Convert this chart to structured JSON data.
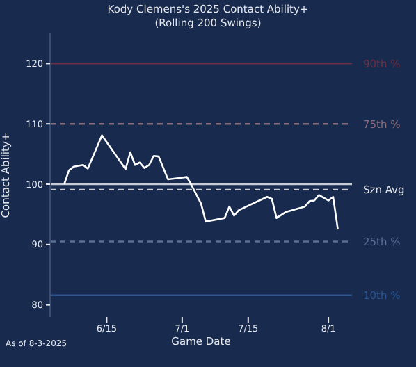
{
  "chart_data": {
    "type": "line",
    "title": "Kody Clemens's 2025 Contact Ability+\n(Rolling 200 Swings)",
    "xlabel": "Game Date",
    "ylabel": "Contact Ability+",
    "annotations": [
      "As of 8-3-2025"
    ],
    "x": [
      "--06-06",
      "--06-07",
      "--06-08",
      "--06-10",
      "--06-11",
      "--06-14",
      "--06-19",
      "--06-20",
      "--06-21",
      "--06-22",
      "--06-23",
      "--06-24",
      "--06-25",
      "--06-26",
      "--06-28",
      "--07-02",
      "--07-03",
      "--07-05",
      "--07-06",
      "--07-10",
      "--07-11",
      "--07-12",
      "--07-13",
      "--07-19",
      "--07-20",
      "--07-21",
      "--07-23",
      "--07-27",
      "--07-28",
      "--07-29",
      "--07-30",
      "--08-01",
      "--08-02",
      "--08-03"
    ],
    "series": [
      {
        "color": "#ffffff",
        "line_style": "solid",
        "values": [
          100.0,
          102.3,
          102.9,
          103.2,
          102.6,
          108.1,
          102.5,
          105.3,
          103.2,
          103.6,
          102.7,
          103.2,
          104.7,
          104.6,
          100.8,
          101.2,
          99.8,
          96.8,
          93.8,
          94.4,
          96.3,
          94.8,
          95.7,
          97.9,
          97.6,
          94.4,
          95.4,
          96.3,
          97.2,
          97.3,
          98.2,
          97.3,
          97.9,
          92.5
        ]
      }
    ],
    "xlim": [
      "--06-03",
      "--08-06"
    ],
    "xticks": [
      {
        "value": "--06-15",
        "label": "6/15"
      },
      {
        "value": "--07-01",
        "label": "7/1"
      },
      {
        "value": "--07-15",
        "label": "7/15"
      },
      {
        "value": "--08-01",
        "label": "8/1"
      }
    ],
    "ylim": [
      78,
      125
    ],
    "yticks": [
      80,
      90,
      100,
      110,
      120
    ],
    "ref_lines": [
      {
        "axis": "y",
        "value": 120,
        "label": "90th %",
        "color": "#6b2f45",
        "line_style": "solid"
      },
      {
        "axis": "y",
        "value": 110,
        "label": "75th %",
        "color": "#8a6d7d",
        "line_style": "dashed"
      },
      {
        "axis": "y",
        "value": 100,
        "label": null,
        "color": "#c8ccd6",
        "line_style": "solid"
      },
      {
        "axis": "y",
        "value": 99.1,
        "label": "Szn Avg",
        "color": "#c8ccd6",
        "line_style": "dashed"
      },
      {
        "axis": "y",
        "value": 90.5,
        "label": "25th %",
        "color": "#5d6f96",
        "line_style": "dashed"
      },
      {
        "axis": "y",
        "value": 81.6,
        "label": "10th %",
        "color": "#2a5592",
        "line_style": "solid"
      }
    ],
    "grid": false,
    "legend": false,
    "marker": "none"
  }
}
